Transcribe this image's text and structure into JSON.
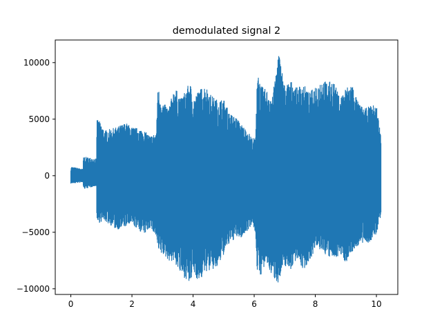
{
  "chart_data": {
    "type": "line",
    "title": "demodulated signal 2",
    "xlabel": "",
    "ylabel": "",
    "xlim": [
      -0.51,
      10.7
    ],
    "ylim": [
      -10500,
      12000
    ],
    "x_ticks": [
      0,
      2,
      4,
      6,
      8,
      10
    ],
    "x_tick_labels": [
      "0",
      "2",
      "4",
      "6",
      "8",
      "10"
    ],
    "y_ticks": [
      -10000,
      -5000,
      0,
      5000,
      10000
    ],
    "y_tick_labels": [
      "−10000",
      "−5000",
      "0",
      "5000",
      "10000"
    ],
    "grid": false,
    "legend": "none",
    "series": [
      {
        "name": "",
        "color": "#1f77b4",
        "x_range": [
          0,
          10.15
        ],
        "envelope": {
          "x": [
            0,
            0.4,
            0.41,
            0.84,
            0.85,
            0.9,
            1.1,
            1.5,
            1.8,
            2.0,
            2.2,
            2.4,
            2.6,
            2.8,
            2.85,
            2.9,
            3.0,
            3.2,
            3.4,
            3.6,
            3.8,
            3.9,
            4.0,
            4.2,
            4.4,
            4.6,
            4.8,
            5.0,
            5.2,
            5.4,
            5.6,
            5.8,
            5.95,
            6.05,
            6.1,
            6.2,
            6.4,
            6.6,
            6.8,
            7.0,
            7.2,
            7.4,
            7.6,
            7.8,
            8.0,
            8.2,
            8.4,
            8.6,
            8.8,
            9.0,
            9.2,
            9.4,
            9.6,
            9.8,
            10.0,
            10.15
          ],
          "max": [
            800,
            600,
            1700,
            1500,
            5000,
            5000,
            4000,
            4300,
            4700,
            4300,
            4200,
            4000,
            3500,
            3800,
            8200,
            7200,
            6500,
            6000,
            7900,
            6800,
            7800,
            8300,
            6800,
            7600,
            8000,
            7100,
            6700,
            6800,
            5500,
            5200,
            4500,
            3900,
            3300,
            3400,
            9900,
            8000,
            7600,
            7000,
            11000,
            8000,
            8400,
            7800,
            8200,
            7300,
            8000,
            8500,
            8300,
            8400,
            6900,
            7800,
            8200,
            6500,
            5900,
            6200,
            6300,
            3500
          ],
          "min": [
            -700,
            -600,
            -1200,
            -900,
            -4300,
            -4200,
            -4000,
            -4800,
            -4500,
            -4300,
            -4800,
            -5200,
            -4600,
            -5500,
            -6700,
            -7000,
            -7000,
            -7500,
            -7700,
            -8800,
            -9200,
            -9800,
            -8500,
            -9500,
            -8500,
            -8400,
            -8200,
            -7000,
            -6000,
            -5500,
            -5500,
            -4800,
            -4200,
            -5300,
            -8700,
            -8900,
            -7800,
            -9000,
            -9500,
            -8000,
            -8300,
            -7300,
            -8400,
            -7600,
            -6500,
            -6600,
            -7200,
            -7400,
            -7000,
            -7700,
            -6800,
            -6200,
            -6000,
            -5900,
            -5200,
            -3500
          ]
        }
      }
    ]
  }
}
